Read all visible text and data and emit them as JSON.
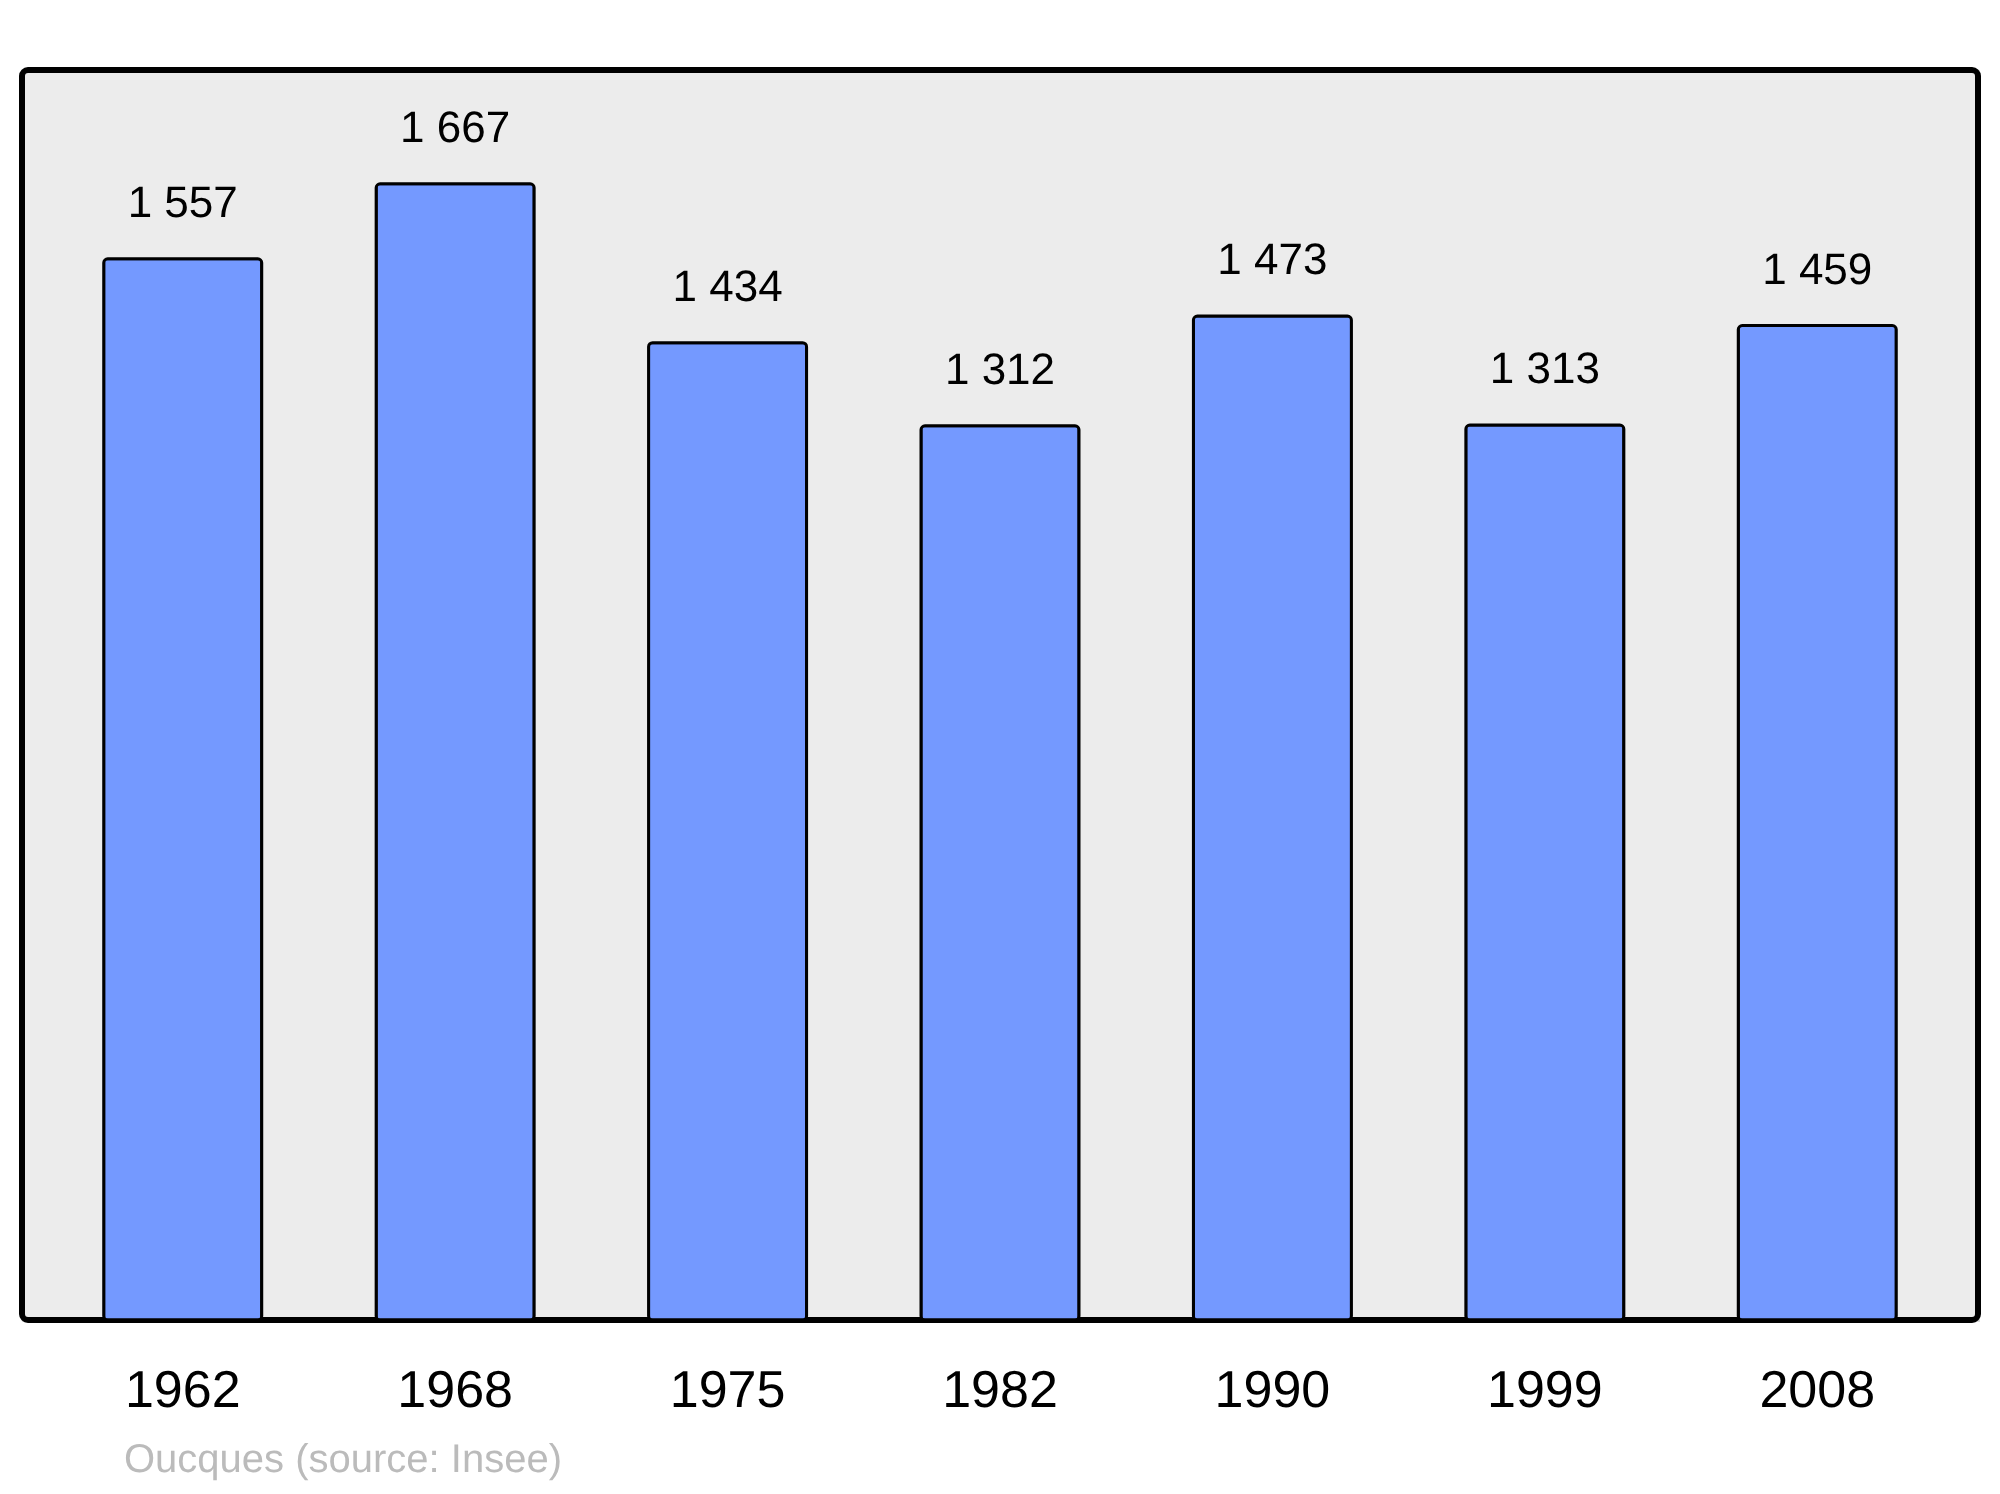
{
  "chart_data": {
    "type": "bar",
    "categories": [
      "1962",
      "1968",
      "1975",
      "1982",
      "1990",
      "1999",
      "2008"
    ],
    "values": [
      1557,
      1667,
      1434,
      1312,
      1473,
      1313,
      1459
    ],
    "color": "#7499ff",
    "ylim": [
      0,
      1834
    ],
    "data_labels": true,
    "annotations": [
      "Oucques (source: Insee)"
    ]
  }
}
